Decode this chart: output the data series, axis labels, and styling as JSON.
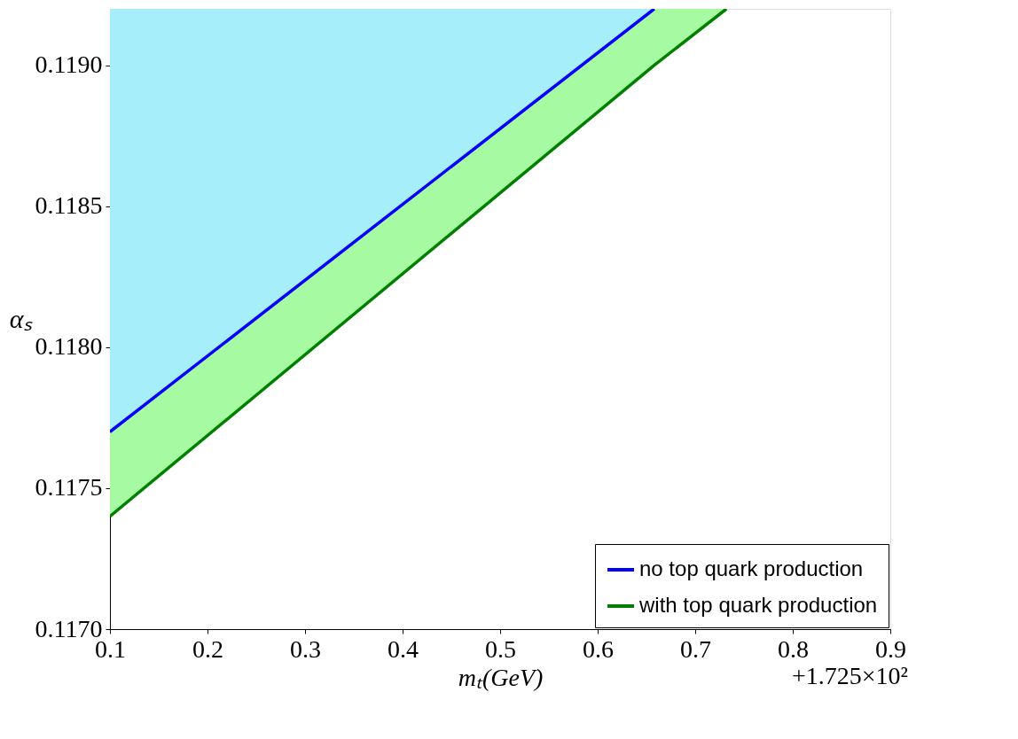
{
  "chart_data": {
    "type": "line",
    "xlabel": "mₜ(GeV)",
    "ylabel": "αₛ",
    "xlim": [
      0.1,
      0.9
    ],
    "ylim": [
      0.117,
      0.1192
    ],
    "xticks": [
      0.1,
      0.2,
      0.3,
      0.4,
      0.5,
      0.6,
      0.7,
      0.8,
      0.9
    ],
    "yticks": [
      {
        "value": 0.117,
        "label": "0.1170"
      },
      0.1175,
      {
        "value": 0.118,
        "label": "0.1180"
      },
      0.1185,
      {
        "value": 0.119,
        "label": "0.1190"
      }
    ],
    "series": [
      {
        "name": "no top quark production",
        "color": "#0000ff",
        "x": [
          0.1,
          0.658
        ],
        "values": [
          0.1177,
          0.1192
        ],
        "lower": [
          0.1177,
          0.1192
        ],
        "upper": [
          0.1192,
          0.1192
        ]
      },
      {
        "name": "with top quark production",
        "color": "#007f00",
        "x": [
          0.1,
          0.658,
          0.732
        ],
        "values": [
          0.1174,
          0.119,
          0.1192
        ],
        "lower": [
          0.1174,
          0.119,
          0.1192
        ],
        "upper": [
          0.1177,
          0.1192,
          0.1192
        ]
      }
    ],
    "annotations": [
      "+1.725×10²"
    ],
    "legend": "bottom right",
    "grid": false
  }
}
